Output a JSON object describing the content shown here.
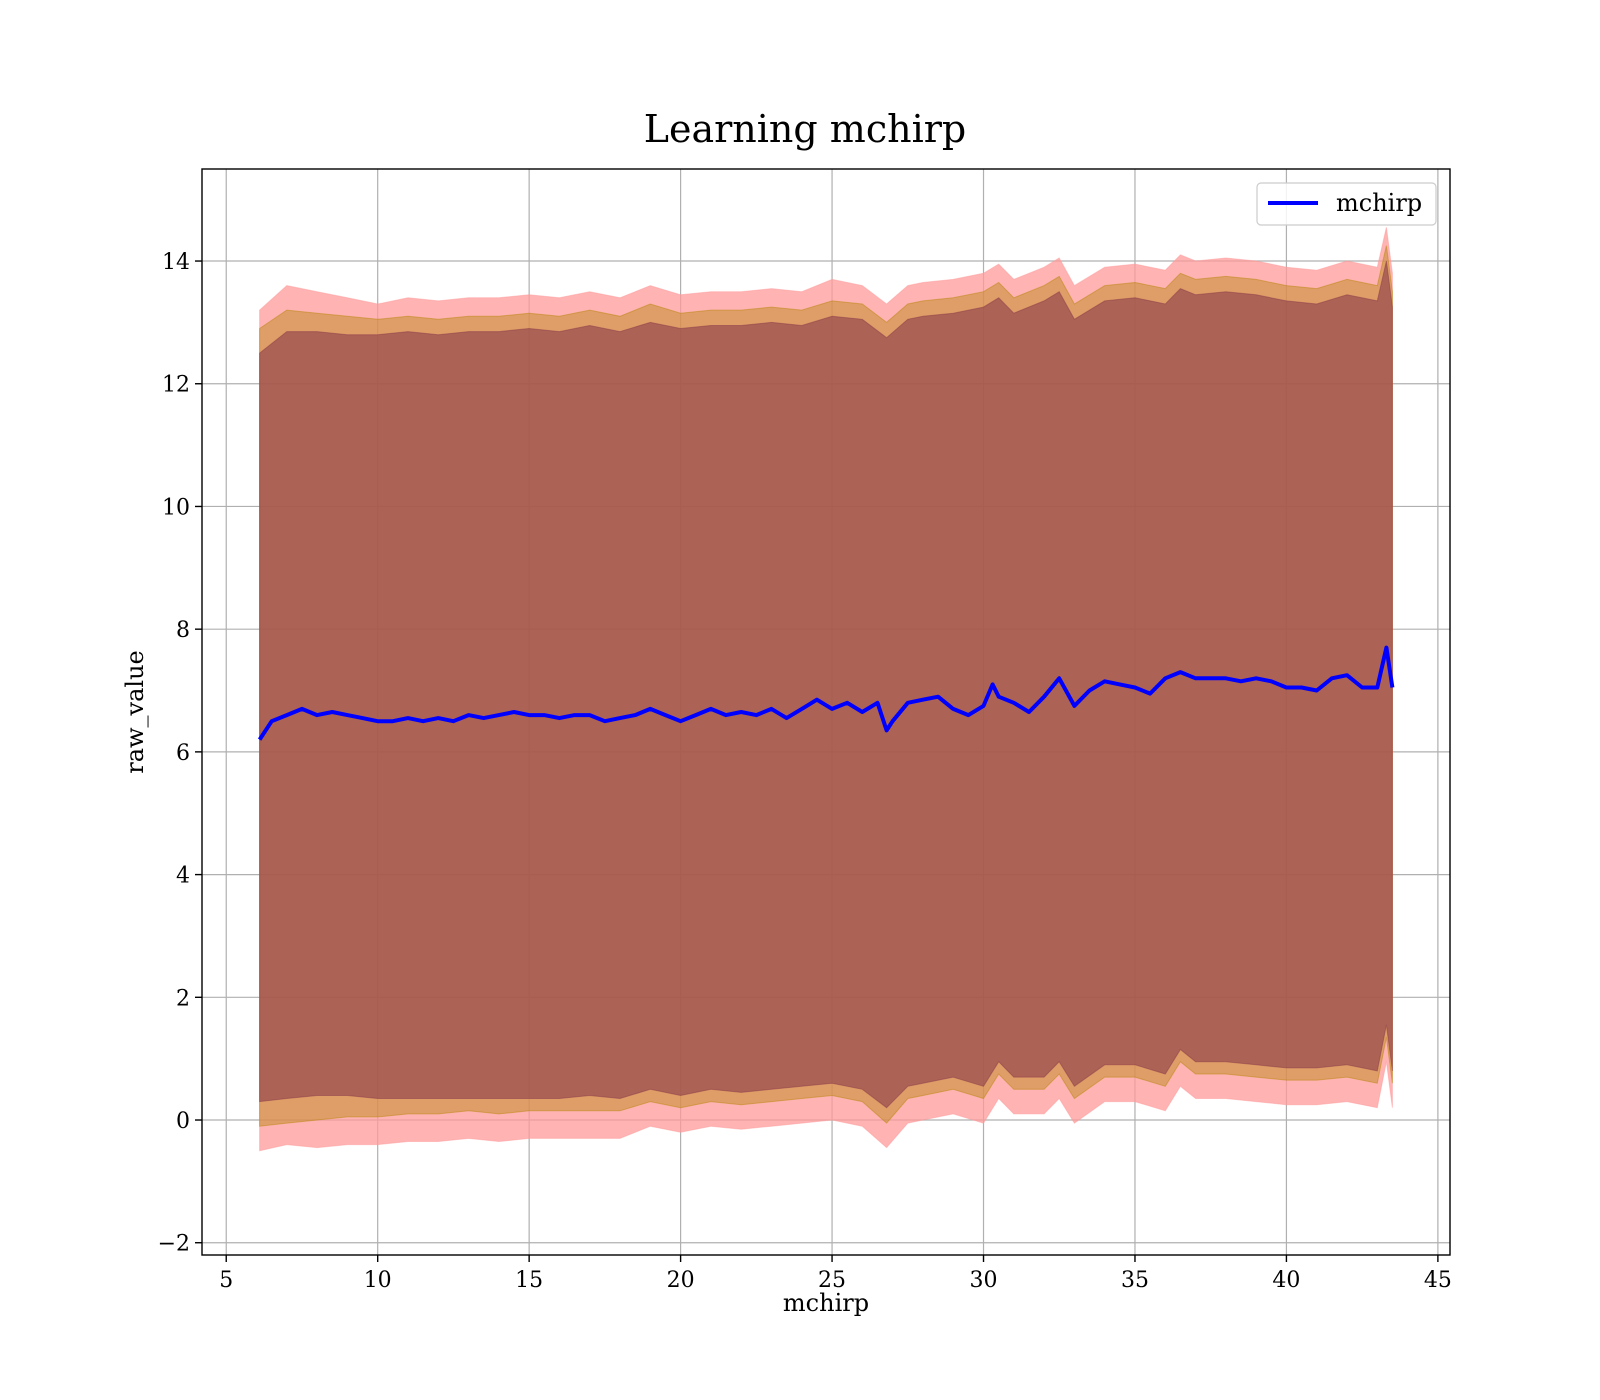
{
  "chart_data": {
    "type": "line",
    "title": "Learning mchirp",
    "xlabel": "mchirp",
    "ylabel": "raw_value",
    "xlim": [
      4.2,
      45.4
    ],
    "ylim": [
      -2.2,
      15.5
    ],
    "x_ticks": [
      5,
      10,
      15,
      20,
      25,
      30,
      35,
      40,
      45
    ],
    "y_ticks": [
      -2,
      0,
      2,
      4,
      6,
      8,
      10,
      12,
      14
    ],
    "x_tick_labels": [
      "5",
      "10",
      "15",
      "20",
      "25",
      "30",
      "35",
      "40",
      "45"
    ],
    "y_tick_labels": [
      "−2",
      "0",
      "2",
      "4",
      "6",
      "8",
      "10",
      "12",
      "14"
    ],
    "grid": true,
    "legend_position": "top-right",
    "series": [
      {
        "name": "mchirp",
        "color": "#0000ff",
        "x": [
          6.1,
          6.5,
          7.0,
          7.5,
          8.0,
          8.5,
          9.0,
          9.5,
          10.0,
          10.5,
          11.0,
          11.5,
          12.0,
          12.5,
          13.0,
          13.5,
          14.0,
          14.5,
          15.0,
          15.5,
          16.0,
          16.5,
          17.0,
          17.5,
          18.0,
          18.5,
          19.0,
          19.5,
          20.0,
          20.5,
          21.0,
          21.5,
          22.0,
          22.5,
          23.0,
          23.5,
          24.0,
          24.5,
          25.0,
          25.5,
          26.0,
          26.5,
          26.8,
          27.0,
          27.5,
          28.0,
          28.5,
          29.0,
          29.5,
          30.0,
          30.3,
          30.5,
          31.0,
          31.5,
          32.0,
          32.5,
          33.0,
          33.5,
          34.0,
          34.5,
          35.0,
          35.5,
          36.0,
          36.5,
          37.0,
          37.5,
          38.0,
          38.5,
          39.0,
          39.5,
          40.0,
          40.5,
          41.0,
          41.5,
          42.0,
          42.5,
          43.0,
          43.3,
          43.5
        ],
        "y": [
          6.2,
          6.5,
          6.6,
          6.7,
          6.6,
          6.65,
          6.6,
          6.55,
          6.5,
          6.5,
          6.55,
          6.5,
          6.55,
          6.5,
          6.6,
          6.55,
          6.6,
          6.65,
          6.6,
          6.6,
          6.55,
          6.6,
          6.6,
          6.5,
          6.55,
          6.6,
          6.7,
          6.6,
          6.5,
          6.6,
          6.7,
          6.6,
          6.65,
          6.6,
          6.7,
          6.55,
          6.7,
          6.85,
          6.7,
          6.8,
          6.65,
          6.8,
          6.35,
          6.5,
          6.8,
          6.85,
          6.9,
          6.7,
          6.6,
          6.75,
          7.1,
          6.9,
          6.8,
          6.65,
          6.9,
          7.2,
          6.75,
          7.0,
          7.15,
          7.1,
          7.05,
          6.95,
          7.2,
          7.3,
          7.2,
          7.2,
          7.2,
          7.15,
          7.2,
          7.15,
          7.05,
          7.05,
          7.0,
          7.2,
          7.25,
          7.05,
          7.05,
          7.7,
          7.05
        ]
      }
    ],
    "bands": [
      {
        "color": "#ff9999",
        "x": [
          6.1,
          7.0,
          8.0,
          9.0,
          10.0,
          11.0,
          12.0,
          13.0,
          14.0,
          15.0,
          16.0,
          17.0,
          18.0,
          19.0,
          20.0,
          21.0,
          22.0,
          23.0,
          24.0,
          25.0,
          26.0,
          26.8,
          27.5,
          28.0,
          29.0,
          30.0,
          30.5,
          31.0,
          32.0,
          32.5,
          33.0,
          34.0,
          35.0,
          36.0,
          36.5,
          37.0,
          38.0,
          39.0,
          40.0,
          41.0,
          42.0,
          43.0,
          43.3,
          43.5
        ],
        "upper": [
          13.2,
          13.6,
          13.5,
          13.4,
          13.3,
          13.4,
          13.35,
          13.4,
          13.4,
          13.45,
          13.4,
          13.5,
          13.4,
          13.6,
          13.45,
          13.5,
          13.5,
          13.55,
          13.5,
          13.7,
          13.6,
          13.3,
          13.6,
          13.65,
          13.7,
          13.8,
          13.95,
          13.7,
          13.9,
          14.05,
          13.6,
          13.9,
          13.95,
          13.85,
          14.1,
          14.0,
          14.05,
          14.0,
          13.9,
          13.85,
          14.0,
          13.9,
          14.55,
          13.8
        ],
        "lower": [
          -0.5,
          -0.4,
          -0.45,
          -0.4,
          -0.4,
          -0.35,
          -0.35,
          -0.3,
          -0.35,
          -0.3,
          -0.3,
          -0.3,
          -0.3,
          -0.1,
          -0.2,
          -0.1,
          -0.15,
          -0.1,
          -0.05,
          0.0,
          -0.1,
          -0.45,
          -0.05,
          0.0,
          0.1,
          -0.05,
          0.35,
          0.1,
          0.1,
          0.35,
          -0.05,
          0.3,
          0.3,
          0.15,
          0.55,
          0.35,
          0.35,
          0.3,
          0.25,
          0.25,
          0.3,
          0.2,
          0.95,
          0.2
        ]
      },
      {
        "color": "#b8860b",
        "x": [
          6.1,
          7.0,
          8.0,
          9.0,
          10.0,
          11.0,
          12.0,
          13.0,
          14.0,
          15.0,
          16.0,
          17.0,
          18.0,
          19.0,
          20.0,
          21.0,
          22.0,
          23.0,
          24.0,
          25.0,
          26.0,
          26.8,
          27.5,
          28.0,
          29.0,
          30.0,
          30.5,
          31.0,
          32.0,
          32.5,
          33.0,
          34.0,
          35.0,
          36.0,
          36.5,
          37.0,
          38.0,
          39.0,
          40.0,
          41.0,
          42.0,
          43.0,
          43.3,
          43.5
        ],
        "upper": [
          12.9,
          13.2,
          13.15,
          13.1,
          13.05,
          13.1,
          13.05,
          13.1,
          13.1,
          13.15,
          13.1,
          13.2,
          13.1,
          13.3,
          13.15,
          13.2,
          13.2,
          13.25,
          13.2,
          13.35,
          13.3,
          13.0,
          13.3,
          13.35,
          13.4,
          13.5,
          13.65,
          13.4,
          13.6,
          13.75,
          13.3,
          13.6,
          13.65,
          13.55,
          13.8,
          13.7,
          13.75,
          13.7,
          13.6,
          13.55,
          13.7,
          13.6,
          14.25,
          13.5
        ],
        "lower": [
          -0.1,
          -0.05,
          0.0,
          0.05,
          0.05,
          0.1,
          0.1,
          0.15,
          0.1,
          0.15,
          0.15,
          0.15,
          0.15,
          0.3,
          0.2,
          0.3,
          0.25,
          0.3,
          0.35,
          0.4,
          0.3,
          -0.05,
          0.35,
          0.4,
          0.5,
          0.35,
          0.75,
          0.5,
          0.5,
          0.75,
          0.35,
          0.7,
          0.7,
          0.55,
          0.95,
          0.75,
          0.75,
          0.7,
          0.65,
          0.65,
          0.7,
          0.6,
          1.35,
          0.6
        ]
      },
      {
        "color": "#8b3a4a",
        "x": [
          6.1,
          7.0,
          8.0,
          9.0,
          10.0,
          11.0,
          12.0,
          13.0,
          14.0,
          15.0,
          16.0,
          17.0,
          18.0,
          19.0,
          20.0,
          21.0,
          22.0,
          23.0,
          24.0,
          25.0,
          26.0,
          26.8,
          27.5,
          28.0,
          29.0,
          30.0,
          30.5,
          31.0,
          32.0,
          32.5,
          33.0,
          34.0,
          35.0,
          36.0,
          36.5,
          37.0,
          38.0,
          39.0,
          40.0,
          41.0,
          42.0,
          43.0,
          43.3,
          43.5
        ],
        "upper": [
          12.5,
          12.85,
          12.85,
          12.8,
          12.8,
          12.85,
          12.8,
          12.85,
          12.85,
          12.9,
          12.85,
          12.95,
          12.85,
          13.0,
          12.9,
          12.95,
          12.95,
          13.0,
          12.95,
          13.1,
          13.05,
          12.75,
          13.05,
          13.1,
          13.15,
          13.25,
          13.4,
          13.15,
          13.35,
          13.5,
          13.05,
          13.35,
          13.4,
          13.3,
          13.55,
          13.45,
          13.5,
          13.45,
          13.35,
          13.3,
          13.45,
          13.35,
          14.0,
          13.25
        ],
        "lower": [
          0.3,
          0.35,
          0.4,
          0.4,
          0.35,
          0.35,
          0.35,
          0.35,
          0.35,
          0.35,
          0.35,
          0.4,
          0.35,
          0.5,
          0.4,
          0.5,
          0.45,
          0.5,
          0.55,
          0.6,
          0.5,
          0.2,
          0.55,
          0.6,
          0.7,
          0.55,
          0.95,
          0.7,
          0.7,
          0.95,
          0.55,
          0.9,
          0.9,
          0.75,
          1.15,
          0.95,
          0.95,
          0.9,
          0.85,
          0.85,
          0.9,
          0.8,
          1.55,
          0.8
        ]
      }
    ]
  }
}
